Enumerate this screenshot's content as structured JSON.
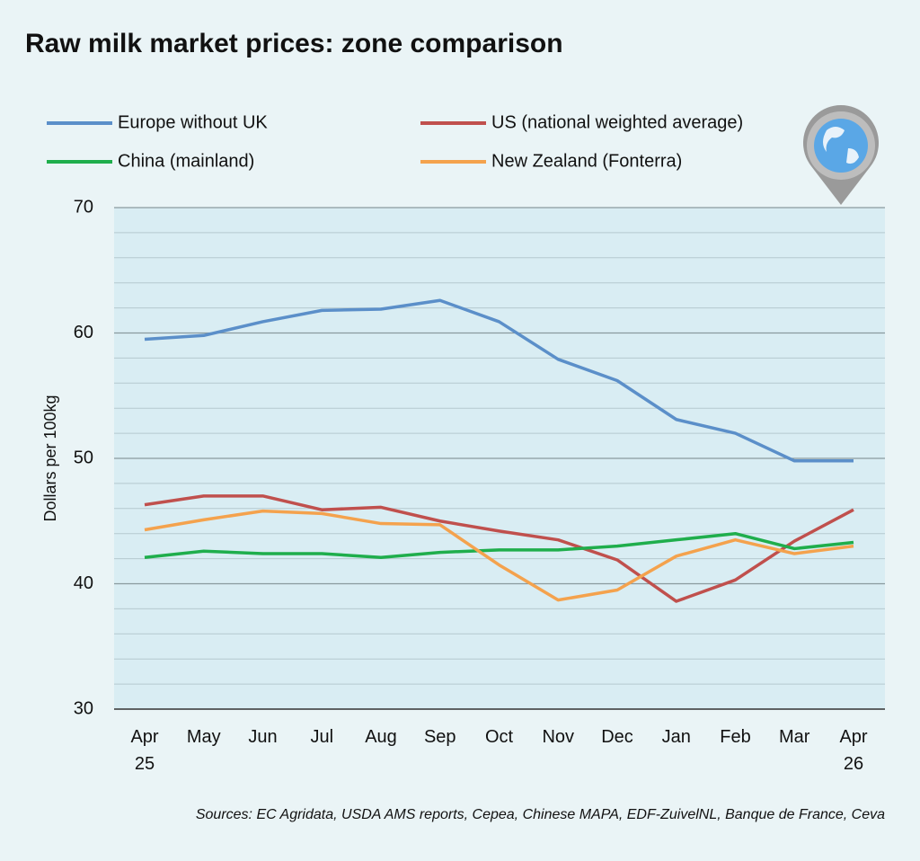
{
  "chart_data": {
    "type": "line",
    "title": "Raw milk market prices: zone comparison",
    "y_label": "Dollars per 100kg",
    "source": "Sources: EC Agridata, USDA AMS reports, Cepea, Chinese MAPA, EDF-ZuivelNL, Banque de France, Ceva",
    "categories": [
      "Apr 25",
      "May",
      "Jun",
      "Jul",
      "Aug",
      "Sep",
      "Oct",
      "Nov",
      "Dec",
      "Jan",
      "Feb",
      "Mar",
      "Apr 26"
    ],
    "series": [
      {
        "name": "Europe without UK",
        "color": "#5b8fc9",
        "values": [
          59.5,
          59.8,
          60.9,
          61.8,
          61.9,
          62.6,
          60.9,
          57.9,
          56.2,
          53.1,
          52.0,
          49.8,
          49.8
        ]
      },
      {
        "name": "US (national weighted average)",
        "color": "#c0504d",
        "values": [
          46.3,
          47.0,
          47.0,
          45.9,
          46.1,
          45.0,
          44.2,
          43.5,
          41.9,
          38.6,
          40.3,
          43.4,
          45.9
        ]
      },
      {
        "name": "China (mainland)",
        "color": "#1fae4c",
        "values": [
          42.1,
          42.6,
          42.4,
          42.4,
          42.1,
          42.5,
          42.7,
          42.7,
          43.0,
          43.5,
          44.0,
          42.8,
          43.3
        ]
      },
      {
        "name": "New Zealand (Fonterra)",
        "color": "#f4a24d",
        "values": [
          44.3,
          45.1,
          45.8,
          45.6,
          44.8,
          44.7,
          41.5,
          38.7,
          39.5,
          42.2,
          43.5,
          42.4,
          43.0
        ]
      }
    ],
    "ylim": [
      30,
      70
    ],
    "yticks": [
      30,
      40,
      50,
      60,
      70
    ],
    "minor_yticks": [
      32,
      34,
      36,
      38,
      42,
      44,
      46,
      48,
      52,
      54,
      56,
      58,
      62,
      64,
      66,
      68
    ],
    "grid": true
  }
}
